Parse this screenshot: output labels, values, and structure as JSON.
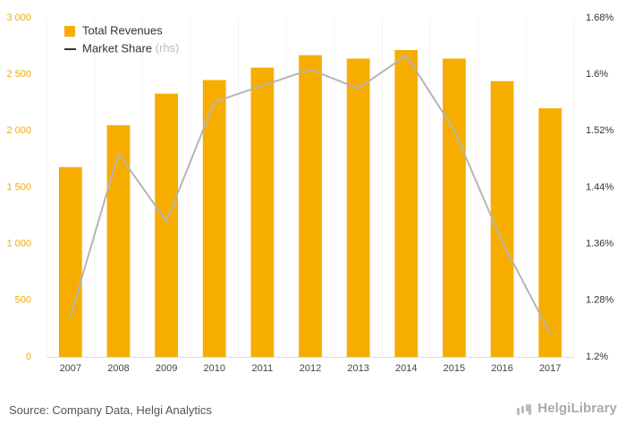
{
  "chart_data": {
    "type": "bar",
    "categories": [
      "2007",
      "2008",
      "2009",
      "2010",
      "2011",
      "2012",
      "2013",
      "2014",
      "2015",
      "2016",
      "2017"
    ],
    "series": [
      {
        "name": "Total Revenues",
        "kind": "bar",
        "axis": "left",
        "color": "#f7ad00",
        "values": [
          1680,
          2050,
          2330,
          2450,
          2560,
          2670,
          2640,
          2715,
          2640,
          2440,
          2200
        ]
      },
      {
        "name": "Market Share",
        "legend_suffix": "(rhs)",
        "kind": "line",
        "axis": "right",
        "color": "#b5b5b5",
        "values": [
          1.2576,
          1.488,
          1.392,
          1.561,
          1.584,
          1.607,
          1.58,
          1.627,
          1.521,
          1.363,
          1.233
        ]
      }
    ],
    "y_left": {
      "min": 0,
      "max": 3000,
      "ticks": [
        0,
        500,
        1000,
        1500,
        2000,
        2500,
        3000
      ],
      "tick_labels": [
        "0",
        "500",
        "1 000",
        "1 500",
        "2 000",
        "2 500",
        "3 000"
      ],
      "label_color": "#f2ad00"
    },
    "y_right": {
      "min": 1.2,
      "max": 1.68,
      "ticks": [
        1.2,
        1.28,
        1.36,
        1.44,
        1.52,
        1.6,
        1.68
      ],
      "tick_labels": [
        "1.2%",
        "1.28%",
        "1.36%",
        "1.44%",
        "1.52%",
        "1.6%",
        "1.68%"
      ],
      "label_color": "#333333"
    },
    "grid": {
      "horizontal": false,
      "vertical_band_separators": true
    },
    "legend_position": "top-left",
    "source": "Source: Company Data, Helgi Analytics",
    "brand": "HelgiLibrary"
  }
}
